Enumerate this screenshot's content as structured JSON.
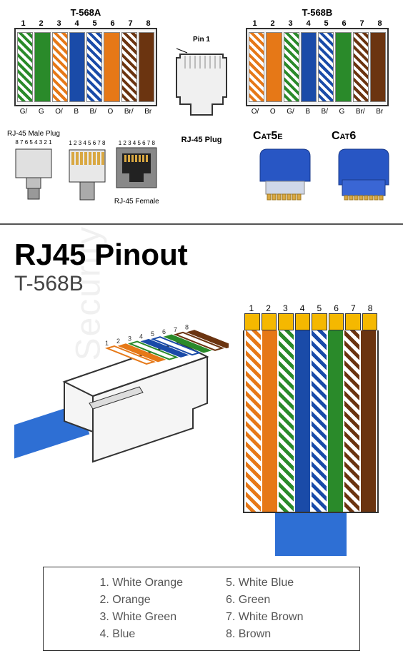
{
  "top": {
    "t568a": {
      "title": "T-568A",
      "pin_numbers": [
        "1",
        "2",
        "3",
        "4",
        "5",
        "6",
        "7",
        "8"
      ],
      "wires": [
        {
          "type": "stripe",
          "color": "#2a8a2a",
          "label": "G/"
        },
        {
          "type": "solid",
          "color": "#2a8a2a",
          "label": "G"
        },
        {
          "type": "stripe",
          "color": "#e67817",
          "label": "O/"
        },
        {
          "type": "solid",
          "color": "#1a4ba8",
          "label": "B"
        },
        {
          "type": "stripe",
          "color": "#1a4ba8",
          "label": "B/"
        },
        {
          "type": "solid",
          "color": "#e67817",
          "label": "O"
        },
        {
          "type": "stripe",
          "color": "#6b3410",
          "label": "Br/"
        },
        {
          "type": "solid",
          "color": "#6b3410",
          "label": "Br"
        }
      ]
    },
    "t568b": {
      "title": "T-568B",
      "pin_numbers": [
        "1",
        "2",
        "3",
        "4",
        "5",
        "6",
        "7",
        "8"
      ],
      "wires": [
        {
          "type": "stripe",
          "color": "#e67817",
          "label": "O/"
        },
        {
          "type": "solid",
          "color": "#e67817",
          "label": "O"
        },
        {
          "type": "stripe",
          "color": "#2a8a2a",
          "label": "G/"
        },
        {
          "type": "solid",
          "color": "#1a4ba8",
          "label": "B"
        },
        {
          "type": "stripe",
          "color": "#1a4ba8",
          "label": "B/"
        },
        {
          "type": "solid",
          "color": "#2a8a2a",
          "label": "G"
        },
        {
          "type": "stripe",
          "color": "#6b3410",
          "label": "Br/"
        },
        {
          "type": "solid",
          "color": "#6b3410",
          "label": "Br"
        }
      ]
    },
    "plug": {
      "pin1": "Pin 1",
      "label": "RJ-45 Plug"
    }
  },
  "mid": {
    "male_label": "RJ-45 Male Plug",
    "male_back_nums": "8 7 6 5 4 3 2 1",
    "male_front_nums": "1 2 3 4 5 6 7 8",
    "female_nums": "1 2 3 4 5 6 7 8",
    "female_label": "RJ-45 Female",
    "cat5e": "Cat5e",
    "cat6": "Cat6",
    "cat_plug_color": "#2856c4",
    "cat_gold": "#d9a842"
  },
  "bottom": {
    "title": "RJ45 Pinout",
    "subtitle": "T-568B",
    "pin_numbers": [
      "1",
      "2",
      "3",
      "4",
      "5",
      "6",
      "7",
      "8"
    ],
    "wires": [
      {
        "type": "stripe",
        "color": "#e67817"
      },
      {
        "type": "solid",
        "color": "#e67817"
      },
      {
        "type": "stripe",
        "color": "#2a8a2a"
      },
      {
        "type": "solid",
        "color": "#1a4ba8"
      },
      {
        "type": "stripe",
        "color": "#1a4ba8"
      },
      {
        "type": "solid",
        "color": "#2a8a2a"
      },
      {
        "type": "stripe",
        "color": "#6b3410"
      },
      {
        "type": "solid",
        "color": "#6b3410"
      }
    ],
    "cable_color": "#2e6fd4",
    "gold_color": "#f5b800",
    "legend": {
      "left": [
        "1. White Orange",
        "2. Orange",
        "3. White Green",
        "4. Blue"
      ],
      "right": [
        "5. White Blue",
        "6. Green",
        "7. White Brown",
        "8. Brown"
      ]
    }
  }
}
